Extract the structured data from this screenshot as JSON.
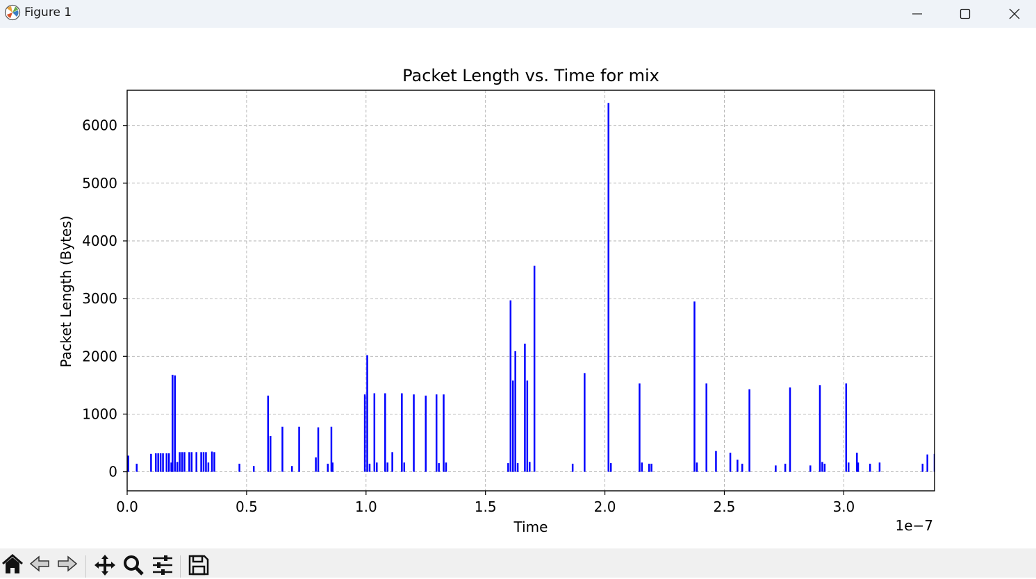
{
  "window": {
    "title": "Figure 1",
    "icons": {
      "app": "matplotlib-icon",
      "minimize": "minimize-icon",
      "maximize": "maximize-icon",
      "close": "close-icon"
    }
  },
  "toolbar": {
    "buttons": [
      "home-icon",
      "back-arrow-icon",
      "forward-arrow-icon",
      "pan-icon",
      "zoom-icon",
      "configure-subplots-icon",
      "save-icon"
    ]
  },
  "colors": {
    "bars": "#0000ff",
    "grid": "#b0b0b0",
    "titlebar": "#eff3f8",
    "toolbar": "#f0f0f0"
  },
  "chart_data": {
    "type": "bar",
    "title": "Packet Length vs. Time for mix",
    "xlabel": "Time",
    "ylabel": "Packet Length (Bytes)",
    "x_offset_label": "1e−7",
    "x_ticks": [
      0.0,
      0.5,
      1.0,
      1.5,
      2.0,
      2.5,
      3.0
    ],
    "x_tick_labels": [
      "0.0",
      "0.5",
      "1.0",
      "1.5",
      "2.0",
      "2.5",
      "3.0"
    ],
    "y_ticks": [
      0,
      1000,
      2000,
      3000,
      4000,
      5000,
      6000
    ],
    "y_tick_labels": [
      "0",
      "1000",
      "2000",
      "3000",
      "4000",
      "5000",
      "6000"
    ],
    "xlim": [
      0.0,
      3.38
    ],
    "ylim": [
      -330,
      6610
    ],
    "grid": true,
    "x_scale_note": "x values in units of 1e-7",
    "bar_width": 0.006,
    "series": [
      {
        "x": [
          0.005,
          0.04,
          0.1,
          0.12,
          0.13,
          0.14,
          0.15,
          0.165,
          0.175,
          0.185,
          0.19,
          0.2,
          0.21,
          0.22,
          0.23,
          0.24,
          0.26,
          0.27,
          0.29,
          0.31,
          0.32,
          0.33,
          0.34,
          0.355,
          0.365,
          0.47,
          0.53,
          0.59,
          0.6,
          0.65,
          0.69,
          0.72,
          0.79,
          0.8,
          0.84,
          0.855,
          0.86,
          0.995,
          1.005,
          1.015,
          1.035,
          1.045,
          1.08,
          1.09,
          1.11,
          1.15,
          1.16,
          1.2,
          1.25,
          1.295,
          1.305,
          1.325,
          1.335,
          1.595,
          1.605,
          1.615,
          1.625,
          1.635,
          1.665,
          1.675,
          1.685,
          1.705,
          1.865,
          1.915,
          2.015,
          2.025,
          2.145,
          2.155,
          2.185,
          2.195,
          2.375,
          2.385,
          2.425,
          2.465,
          2.525,
          2.555,
          2.575,
          2.605,
          2.715,
          2.755,
          2.775,
          2.86,
          2.9,
          2.91,
          2.92,
          3.01,
          3.02,
          3.055,
          3.06,
          3.11,
          3.15,
          3.33,
          3.35,
          3.38
        ],
        "values": [
          280,
          140,
          310,
          320,
          320,
          320,
          320,
          320,
          320,
          160,
          1680,
          1670,
          170,
          340,
          340,
          340,
          340,
          340,
          340,
          340,
          340,
          340,
          160,
          350,
          340,
          140,
          100,
          1320,
          620,
          780,
          100,
          780,
          250,
          770,
          140,
          780,
          160,
          1340,
          2020,
          140,
          1360,
          160,
          1360,
          160,
          340,
          1360,
          160,
          1340,
          1320,
          1340,
          150,
          1340,
          160,
          150,
          2970,
          1580,
          2090,
          150,
          2220,
          1580,
          170,
          3570,
          140,
          1710,
          6390,
          150,
          1530,
          160,
          140,
          140,
          2950,
          160,
          1530,
          360,
          330,
          210,
          140,
          1430,
          110,
          140,
          1460,
          110,
          1500,
          170,
          140,
          1530,
          160,
          330,
          160,
          140,
          160,
          140,
          300,
          310
        ]
      }
    ]
  }
}
